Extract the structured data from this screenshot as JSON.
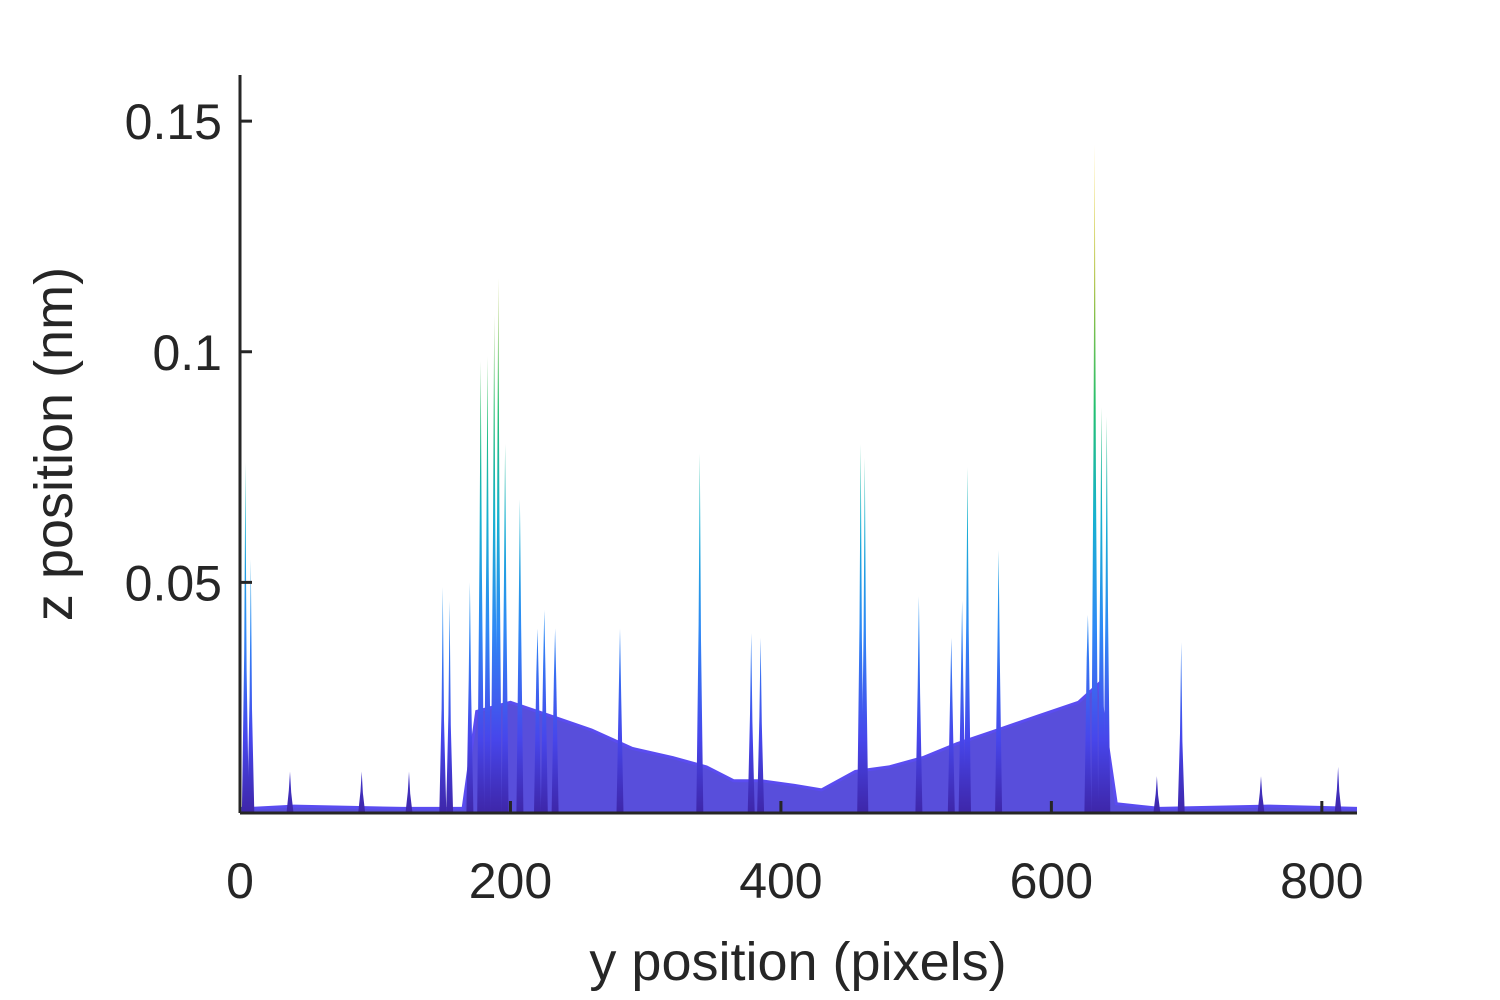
{
  "chart_data": {
    "type": "area",
    "title": "",
    "xlabel": "y position (pixels)",
    "ylabel": "z position (nm)",
    "xlim": [
      0,
      826
    ],
    "ylim": [
      0,
      0.16
    ],
    "xticks": [
      0,
      200,
      400,
      600,
      800
    ],
    "xtick_labels": [
      "0",
      "200",
      "400",
      "600",
      "800"
    ],
    "yticks": [
      0.05,
      0.1,
      0.15
    ],
    "ytick_labels": [
      "0.05",
      "0.1",
      "0.15"
    ],
    "grid": false,
    "colormap": [
      "#3e26a8",
      "#4746eb",
      "#2f8af5",
      "#18b1d0",
      "#22c06f",
      "#a9bf3b",
      "#f9d12f"
    ],
    "series": [
      {
        "values_description": "baseline profile",
        "points": [
          [
            0,
            0.001
          ],
          [
            8,
            0.001
          ],
          [
            40,
            0.0015
          ],
          [
            120,
            0.001
          ],
          [
            165,
            0.001
          ],
          [
            175,
            0.022
          ],
          [
            200,
            0.024
          ],
          [
            230,
            0.021
          ],
          [
            260,
            0.018
          ],
          [
            290,
            0.014
          ],
          [
            320,
            0.012
          ],
          [
            345,
            0.01
          ],
          [
            365,
            0.007
          ],
          [
            385,
            0.007
          ],
          [
            410,
            0.006
          ],
          [
            430,
            0.005
          ],
          [
            455,
            0.009
          ],
          [
            480,
            0.01
          ],
          [
            505,
            0.012
          ],
          [
            530,
            0.015
          ],
          [
            560,
            0.018
          ],
          [
            590,
            0.021
          ],
          [
            620,
            0.024
          ],
          [
            635,
            0.028
          ],
          [
            648,
            0.002
          ],
          [
            680,
            0.001
          ],
          [
            760,
            0.0015
          ],
          [
            826,
            0.001
          ]
        ]
      },
      {
        "values_description": "spikes",
        "points": [
          [
            4,
            0.076
          ],
          [
            8,
            0.055
          ],
          [
            37,
            0.009
          ],
          [
            90,
            0.009
          ],
          [
            125,
            0.009
          ],
          [
            150,
            0.049
          ],
          [
            155,
            0.046
          ],
          [
            170,
            0.05
          ],
          [
            178,
            0.098
          ],
          [
            183,
            0.099
          ],
          [
            188,
            0.108
          ],
          [
            191,
            0.116
          ],
          [
            196,
            0.08
          ],
          [
            207,
            0.068
          ],
          [
            220,
            0.04
          ],
          [
            225,
            0.044
          ],
          [
            233,
            0.04
          ],
          [
            281,
            0.04
          ],
          [
            340,
            0.078
          ],
          [
            378,
            0.039
          ],
          [
            385,
            0.038
          ],
          [
            459,
            0.08
          ],
          [
            462,
            0.077
          ],
          [
            502,
            0.047
          ],
          [
            526,
            0.038
          ],
          [
            534,
            0.046
          ],
          [
            538,
            0.075
          ],
          [
            561,
            0.057
          ],
          [
            627,
            0.043
          ],
          [
            632,
            0.145
          ],
          [
            637,
            0.088
          ],
          [
            641,
            0.086
          ],
          [
            678,
            0.008
          ],
          [
            696,
            0.037
          ],
          [
            755,
            0.008
          ],
          [
            812,
            0.01
          ]
        ]
      }
    ]
  }
}
